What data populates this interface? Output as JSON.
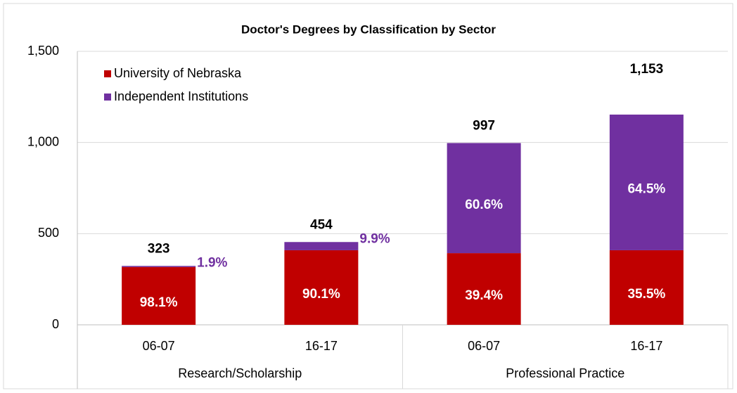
{
  "chart_data": {
    "type": "stacked_bar",
    "title": "Doctor's Degrees by Classification by Sector",
    "categories": [
      "06-07",
      "16-17",
      "06-07",
      "16-17"
    ],
    "groups": [
      "Research/Scholarship",
      "Professional Practice"
    ],
    "series": [
      {
        "name": "University of Nebraska",
        "color": "#c00000",
        "values": [
          317,
          409,
          393,
          409
        ],
        "value_labels": [
          "98.1%",
          "90.1%",
          "39.4%",
          "35.5%"
        ]
      },
      {
        "name": "Independent Institutions",
        "color": "#7030a0",
        "values": [
          6,
          45,
          604,
          744
        ],
        "value_labels": [
          "1.9%",
          "9.9%",
          "60.6%",
          "64.5%"
        ]
      }
    ],
    "totals": [
      323,
      454,
      997,
      1153
    ],
    "total_labels": [
      "323",
      "454",
      "997",
      "1,153"
    ],
    "ylim": [
      0,
      1500
    ],
    "yticks": [
      0,
      {
        "value": 500,
        "label": "500"
      },
      {
        "value": 1000,
        "label": "1,000"
      },
      {
        "value": 1500,
        "label": "1,500"
      }
    ],
    "grid": true,
    "legend": "top-left"
  }
}
